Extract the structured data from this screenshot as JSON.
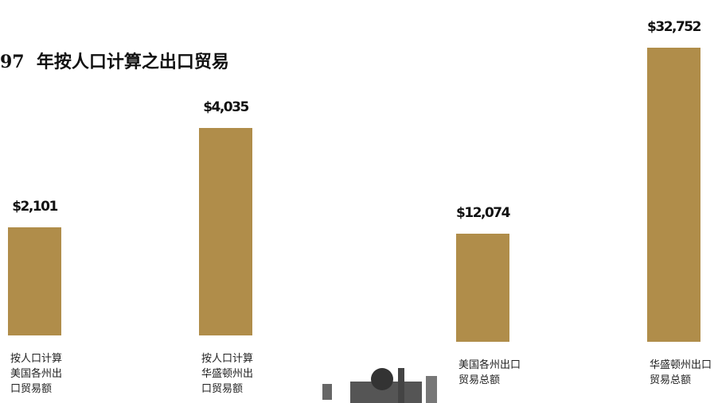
{
  "chart_data": [
    {
      "type": "bar",
      "title": "97  年按人口计算之出口贸易",
      "categories": [
        "按人口计算美国各州出口贸易额",
        "按人口计算华盛顿州出口贸易额"
      ],
      "values": [
        2101,
        4035
      ],
      "value_labels": [
        "$2,101",
        "$4,035"
      ],
      "color": "#b08d4a"
    },
    {
      "type": "bar",
      "categories": [
        "美国各州出口贸易总额",
        "华盛顿州出口贸易总额"
      ],
      "values": [
        12074,
        32752
      ],
      "value_labels": [
        "$12,074",
        "$32,752"
      ],
      "color": "#b08d4a"
    }
  ]
}
